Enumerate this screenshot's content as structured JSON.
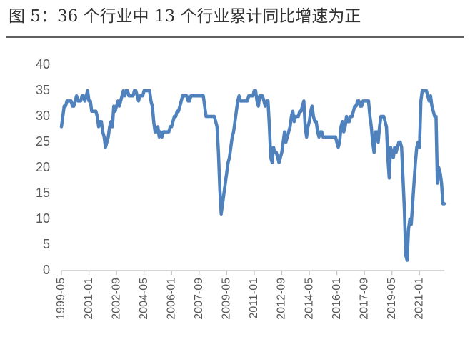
{
  "chart_data": {
    "type": "line",
    "title": "图 5：36 个行业中 13 个行业累计同比增速为正",
    "categories": [
      "1999-05",
      null,
      null,
      null,
      null,
      null,
      null,
      null,
      null,
      null,
      null,
      null,
      null,
      null,
      null,
      null,
      null,
      null,
      null,
      null,
      "2001-01",
      null,
      null,
      null,
      null,
      null,
      null,
      null,
      null,
      null,
      null,
      null,
      null,
      null,
      null,
      null,
      null,
      null,
      null,
      null,
      "2002-09",
      null,
      null,
      null,
      null,
      null,
      null,
      null,
      null,
      null,
      null,
      null,
      null,
      null,
      null,
      null,
      null,
      null,
      null,
      null,
      "2004-05",
      null,
      null,
      null,
      null,
      null,
      null,
      null,
      null,
      null,
      null,
      null,
      null,
      null,
      null,
      null,
      null,
      null,
      null,
      null,
      "2006-01",
      null,
      null,
      null,
      null,
      null,
      null,
      null,
      null,
      null,
      null,
      null,
      null,
      null,
      null,
      null,
      null,
      null,
      null,
      null,
      "2007-09",
      null,
      null,
      null,
      null,
      null,
      null,
      null,
      null,
      null,
      null,
      null,
      null,
      null,
      null,
      null,
      null,
      null,
      null,
      null,
      "2009-05",
      null,
      null,
      null,
      null,
      null,
      null,
      null,
      null,
      null,
      null,
      null,
      null,
      null,
      null,
      null,
      null,
      null,
      null,
      null,
      "2011-01",
      null,
      null,
      null,
      null,
      null,
      null,
      null,
      null,
      null,
      null,
      null,
      null,
      null,
      null,
      null,
      null,
      null,
      null,
      null,
      "2012-09",
      null,
      null,
      null,
      null,
      null,
      null,
      null,
      null,
      null,
      null,
      null,
      null,
      null,
      null,
      null,
      null,
      null,
      null,
      null,
      "2014-05",
      null,
      null,
      null,
      null,
      null,
      null,
      null,
      null,
      null,
      null,
      null,
      null,
      null,
      null,
      null,
      null,
      null,
      null,
      null,
      "2016-01",
      null,
      null,
      null,
      null,
      null,
      null,
      null,
      null,
      null,
      null,
      null,
      null,
      null,
      null,
      null,
      null,
      null,
      null,
      null,
      "2017-09",
      null,
      null,
      null,
      null,
      null,
      null,
      null,
      null,
      null,
      null,
      null,
      null,
      null,
      null,
      null,
      null,
      null,
      null,
      null,
      "2019-05",
      null,
      null,
      null,
      null,
      null,
      null,
      null,
      null,
      null,
      null,
      null,
      null,
      null,
      null,
      null,
      null,
      null,
      null,
      null,
      "2021-01",
      null,
      null,
      null,
      null,
      null,
      null,
      null,
      null,
      null,
      null,
      null,
      null,
      null,
      null,
      null,
      null,
      null,
      null
    ],
    "values": [
      28,
      30,
      32,
      32,
      33,
      33,
      33,
      33,
      32,
      32,
      33,
      34,
      33,
      33,
      33,
      34,
      34,
      33,
      34,
      35,
      33,
      33,
      31,
      31,
      31,
      31,
      30,
      28,
      29,
      29,
      27,
      26,
      24,
      25,
      26,
      28,
      29,
      28,
      32,
      31,
      32,
      33,
      32,
      33,
      34,
      35,
      34,
      35,
      35,
      34,
      34,
      34,
      34,
      35,
      35,
      34,
      33,
      34,
      34,
      34,
      35,
      35,
      35,
      35,
      35,
      33,
      32,
      29,
      27,
      27,
      28,
      26,
      27,
      26,
      27,
      27,
      27,
      27,
      27,
      28,
      28,
      29,
      30,
      30,
      31,
      31,
      32,
      33,
      34,
      34,
      34,
      34,
      33,
      33,
      34,
      34,
      34,
      34,
      34,
      34,
      34,
      34,
      34,
      34,
      32,
      30,
      30,
      30,
      30,
      30,
      30,
      30,
      29,
      28,
      23,
      16,
      11,
      13,
      15,
      17,
      19,
      21,
      22,
      24,
      26,
      27,
      29,
      31,
      33,
      34,
      33,
      33,
      33,
      33,
      33,
      33,
      34,
      34,
      34,
      34,
      35,
      35,
      33,
      32,
      34,
      34,
      34,
      33,
      32,
      33,
      33,
      28,
      22,
      21,
      24,
      23,
      23,
      22,
      21,
      22,
      23,
      25,
      27,
      25,
      26,
      27,
      28,
      30,
      31,
      29,
      30,
      30,
      30,
      31,
      31,
      32,
      33,
      28,
      26,
      28,
      29,
      31,
      32,
      30,
      29,
      29,
      27,
      26,
      27,
      27,
      26,
      26,
      26,
      26,
      26,
      26,
      26,
      26,
      26,
      26,
      25,
      24,
      25,
      28,
      29,
      27,
      28,
      30,
      29,
      29,
      30,
      30,
      31,
      32,
      32,
      33,
      33,
      32,
      32,
      33,
      33,
      33,
      33,
      33,
      30,
      28,
      25,
      23,
      27,
      27,
      25,
      28,
      30,
      30,
      30,
      29,
      28,
      22,
      18,
      24,
      23,
      22,
      24,
      23,
      24,
      25,
      25,
      24,
      18,
      12,
      3,
      2,
      8,
      10,
      9,
      13,
      17,
      21,
      24,
      25,
      24,
      33,
      35,
      35,
      35,
      35,
      34,
      33,
      34,
      32,
      31,
      30,
      30,
      17,
      20,
      19,
      17,
      13,
      13
    ],
    "color": "#4f81bd",
    "ylim": [
      0,
      40
    ],
    "yticks": [
      0,
      5,
      10,
      15,
      20,
      25,
      30,
      35,
      40
    ],
    "grid": false
  }
}
